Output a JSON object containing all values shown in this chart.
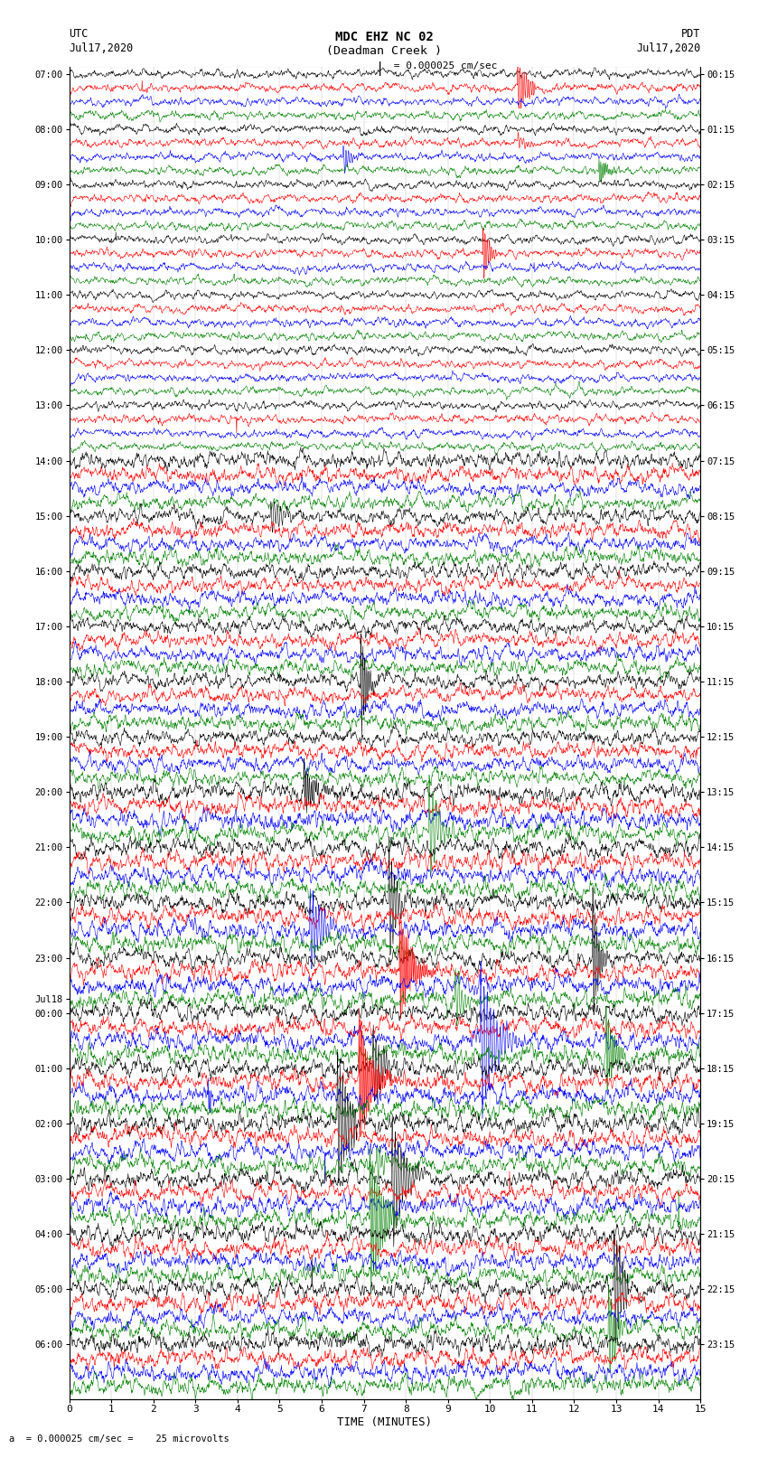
{
  "title_line1": "MDC EHZ NC 02",
  "title_line2": "(Deadman Creek )",
  "scale_text": "I = 0.000025 cm/sec",
  "bottom_scale_text": "= 0.000025 cm/sec =    25 microvolts",
  "utc_label": "UTC",
  "utc_date": "Jul17,2020",
  "pdt_label": "PDT",
  "pdt_date": "Jul17,2020",
  "xlabel": "TIME (MINUTES)",
  "line_colors": [
    "#000000",
    "#ff0000",
    "#0000ff",
    "#008000"
  ],
  "left_labels": [
    [
      "07:00",
      0
    ],
    [
      "08:00",
      4
    ],
    [
      "09:00",
      8
    ],
    [
      "10:00",
      12
    ],
    [
      "11:00",
      16
    ],
    [
      "12:00",
      20
    ],
    [
      "13:00",
      24
    ],
    [
      "14:00",
      28
    ],
    [
      "15:00",
      32
    ],
    [
      "16:00",
      36
    ],
    [
      "17:00",
      40
    ],
    [
      "18:00",
      44
    ],
    [
      "19:00",
      48
    ],
    [
      "20:00",
      52
    ],
    [
      "21:00",
      56
    ],
    [
      "22:00",
      60
    ],
    [
      "23:00",
      64
    ],
    [
      "Jul18",
      67
    ],
    [
      "00:00",
      68
    ],
    [
      "01:00",
      72
    ],
    [
      "02:00",
      76
    ],
    [
      "03:00",
      80
    ],
    [
      "04:00",
      84
    ],
    [
      "05:00",
      88
    ],
    [
      "06:00",
      92
    ]
  ],
  "right_labels": [
    [
      "00:15",
      0
    ],
    [
      "01:15",
      4
    ],
    [
      "02:15",
      8
    ],
    [
      "03:15",
      12
    ],
    [
      "04:15",
      16
    ],
    [
      "05:15",
      20
    ],
    [
      "06:15",
      24
    ],
    [
      "07:15",
      28
    ],
    [
      "08:15",
      32
    ],
    [
      "09:15",
      36
    ],
    [
      "10:15",
      40
    ],
    [
      "11:15",
      44
    ],
    [
      "12:15",
      48
    ],
    [
      "13:15",
      52
    ],
    [
      "14:15",
      56
    ],
    [
      "15:15",
      60
    ],
    [
      "16:15",
      64
    ],
    [
      "17:15",
      68
    ],
    [
      "18:15",
      72
    ],
    [
      "19:15",
      76
    ],
    [
      "20:15",
      80
    ],
    [
      "21:15",
      84
    ],
    [
      "22:15",
      88
    ],
    [
      "23:15",
      92
    ]
  ],
  "n_rows": 96,
  "seed": 42
}
